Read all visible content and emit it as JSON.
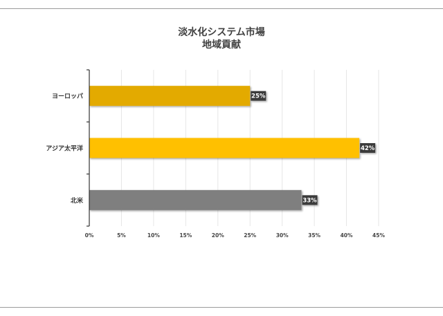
{
  "chart_data": {
    "type": "bar",
    "orientation": "horizontal",
    "title_line1": "淡水化システム市場",
    "title_line2": "地域貢献",
    "categories": [
      "ヨーロッパ",
      "アジア太平洋",
      "北米"
    ],
    "values": [
      25,
      42,
      33
    ],
    "value_labels": [
      "25%",
      "42%",
      "33%"
    ],
    "bar_colors": [
      "#e3aa06",
      "#ffc000",
      "#7f7f7f"
    ],
    "xlim": [
      0,
      45
    ],
    "xticks": [
      0,
      5,
      10,
      15,
      20,
      25,
      30,
      35,
      40,
      45
    ],
    "xtick_labels": [
      "0%",
      "5%",
      "10%",
      "15%",
      "20%",
      "25%",
      "30%",
      "35%",
      "40%",
      "45%"
    ],
    "grid": true,
    "legend": "none"
  }
}
